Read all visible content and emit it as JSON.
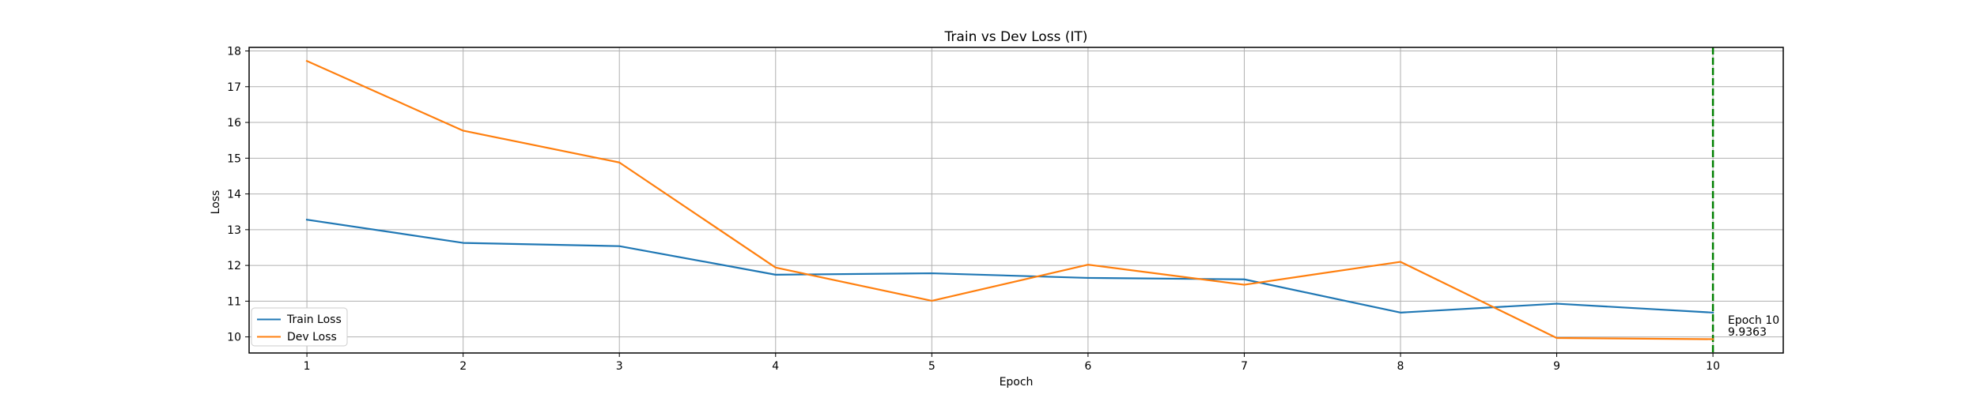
{
  "chart_data": {
    "type": "line",
    "title": "Train vs Dev Loss (IT)",
    "xlabel": "Epoch",
    "ylabel": "Loss",
    "x": [
      1,
      2,
      3,
      4,
      5,
      6,
      7,
      8,
      9,
      10
    ],
    "xlim": [
      0.63,
      10.45
    ],
    "ylim": [
      9.55,
      18.1
    ],
    "xticks": [
      "1",
      "2",
      "3",
      "4",
      "5",
      "6",
      "7",
      "8",
      "9",
      "10"
    ],
    "yticks": [
      "10",
      "11",
      "12",
      "13",
      "14",
      "15",
      "16",
      "17",
      "18"
    ],
    "grid": true,
    "legend_position": "lower-left",
    "series": [
      {
        "name": "Train Loss",
        "color": "#1f77b4",
        "values": [
          13.28,
          12.63,
          12.54,
          11.74,
          11.78,
          11.65,
          11.61,
          10.68,
          10.93,
          10.68
        ]
      },
      {
        "name": "Dev Loss",
        "color": "#ff7f0e",
        "values": [
          17.72,
          15.77,
          14.88,
          11.94,
          11.01,
          12.02,
          11.46,
          12.1,
          9.97,
          9.9363
        ]
      }
    ],
    "marker": {
      "x": 10,
      "color": "#008000",
      "line_style": "dashed",
      "annotation": [
        "Epoch 10",
        "9.9363"
      ]
    }
  }
}
